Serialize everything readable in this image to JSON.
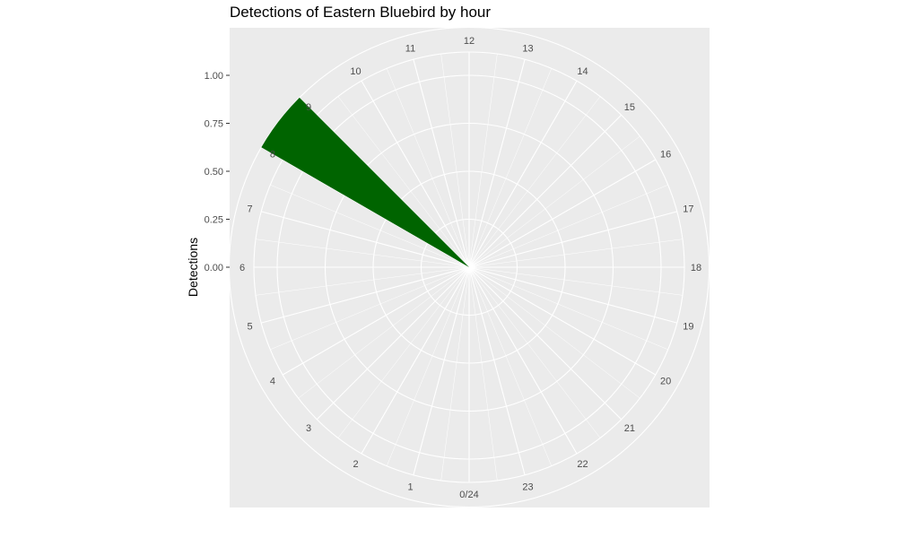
{
  "chart_data": {
    "type": "bar",
    "coord": "polar",
    "title": "Detections of Eastern Bluebird by hour",
    "xlabel": "",
    "ylabel": "Detections",
    "categories": [
      "0",
      "1",
      "2",
      "3",
      "4",
      "5",
      "6",
      "7",
      "8",
      "9",
      "10",
      "11",
      "12",
      "13",
      "14",
      "15",
      "16",
      "17",
      "18",
      "19",
      "20",
      "21",
      "22",
      "23"
    ],
    "values": [
      0,
      0,
      0,
      0,
      0,
      0,
      0,
      0,
      1,
      0,
      0,
      0,
      0,
      0,
      0,
      0,
      0,
      0,
      0,
      0,
      0,
      0,
      0,
      0
    ],
    "hour_labels": [
      "0/24",
      "1",
      "2",
      "3",
      "4",
      "5",
      "6",
      "7",
      "8",
      "9",
      "10",
      "11",
      "12",
      "13",
      "14",
      "15",
      "16",
      "17",
      "18",
      "19",
      "20",
      "21",
      "22",
      "23"
    ],
    "y_ticks": [
      "0.00",
      "0.25",
      "0.50",
      "0.75",
      "1.00"
    ],
    "ylim": [
      0,
      1
    ],
    "grid": true,
    "panel_color": "#ebebeb",
    "bar_color": "#006400",
    "grid_color": "#ffffff"
  }
}
